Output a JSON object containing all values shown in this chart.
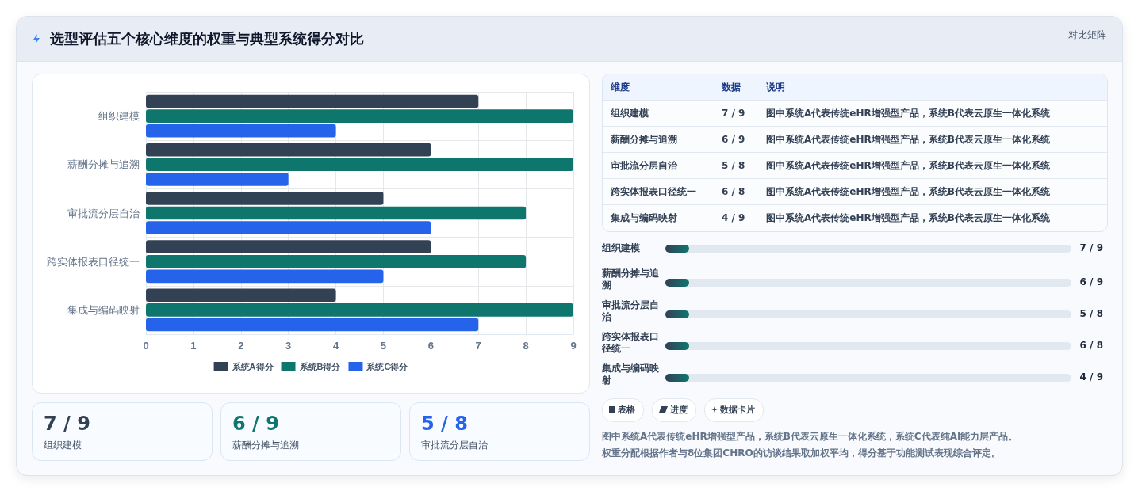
{
  "chart_data": {
    "type": "bar",
    "orientation": "horizontal",
    "title": "选型评估五个核心维度的权重与典型系统得分对比",
    "categories": [
      "组织建模",
      "薪酬分摊与追溯",
      "审批流分层自治",
      "跨实体报表口径统一",
      "集成与编码映射"
    ],
    "series": [
      {
        "name": "系统A得分",
        "color": "#334155",
        "values": [
          7,
          6,
          5,
          6,
          4
        ]
      },
      {
        "name": "系统B得分",
        "color": "#0f766e",
        "values": [
          9,
          9,
          8,
          8,
          9
        ]
      },
      {
        "name": "系统C得分",
        "color": "#2563eb",
        "values": [
          4,
          3,
          6,
          5,
          7
        ]
      }
    ],
    "xlim": [
      0,
      9
    ],
    "xticks": [
      0,
      1,
      2,
      3,
      4,
      5,
      6,
      7,
      8,
      9
    ],
    "grid": true,
    "legend": "bottom",
    "annotations": [
      "对比矩阵",
      "维度",
      "数据",
      "说明",
      "图中系统A代表传统eHR增强型产品，系统B代表云原生一体化系统",
      "表格",
      "进度",
      "数据卡片",
      "图中系统A代表传统eHR增强型产品，系统B代表云原生一体化系统，系统C代表纯AI能力层产品。",
      "权重分配根据作者与8位集团CHRO的访谈结果取加权平均，得分基于功能测试表现综合评定。",
      "7 / 9",
      "6 / 9",
      "5 / 8",
      "6 / 8",
      "4 / 9"
    ]
  }
}
